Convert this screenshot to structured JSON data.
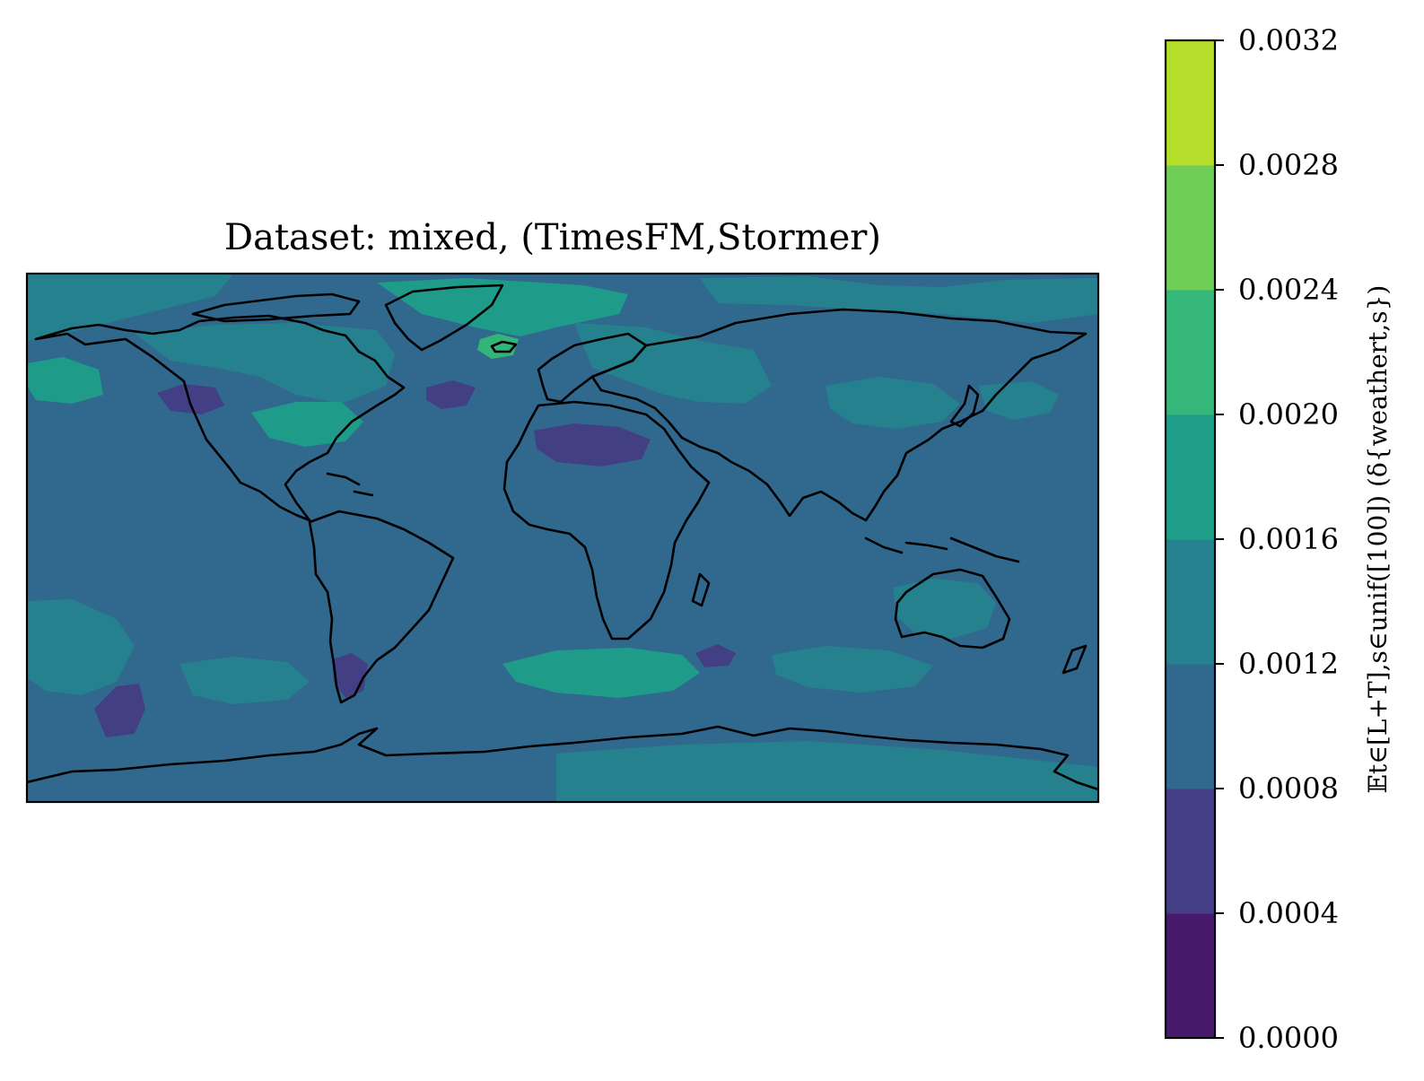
{
  "chart_data": {
    "type": "heatmap",
    "title": "Dataset: mixed, (TimesFM,Stormer)",
    "projection": "equirectangular",
    "grid": false,
    "colorbar": {
      "label": "𝔼t∈[L+T],s∈unif([100]) (δ{weathert,s})",
      "placement": "right",
      "levels": [
        0.0,
        0.0004,
        0.0008,
        0.0012,
        0.0016,
        0.002,
        0.0024,
        0.0028,
        0.0032
      ],
      "tick_labels": [
        "0.0000",
        "0.0004",
        "0.0008",
        "0.0012",
        "0.0016",
        "0.0020",
        "0.0024",
        "0.0028",
        "0.0032"
      ],
      "colors": [
        "#481a6c",
        "#433e85",
        "#31688e",
        "#26828e",
        "#1f9e89",
        "#35b779",
        "#6ece58",
        "#b5de2b",
        "#dde318"
      ]
    },
    "background_level": 0.001,
    "regions": [
      {
        "name": "north-pacific-arctic",
        "value": 0.0014
      },
      {
        "name": "alaska-bering",
        "value": 0.0018
      },
      {
        "name": "canada-north",
        "value": 0.0014
      },
      {
        "name": "central-us",
        "value": 0.0018
      },
      {
        "name": "greenland-iceland",
        "value": 0.0018
      },
      {
        "name": "iceland-spot",
        "value": 0.0022
      },
      {
        "name": "siberia",
        "value": 0.0014
      },
      {
        "name": "russia-west",
        "value": 0.0014
      },
      {
        "name": "central-asia",
        "value": 0.0014
      },
      {
        "name": "east-asia",
        "value": 0.0014
      },
      {
        "name": "australia",
        "value": 0.0014
      },
      {
        "name": "southern-ocean-west",
        "value": 0.0014
      },
      {
        "name": "south-pacific",
        "value": 0.0014
      },
      {
        "name": "south-atlantic",
        "value": 0.0018
      },
      {
        "name": "south-indian",
        "value": 0.0014
      },
      {
        "name": "antarctica-east",
        "value": 0.0014
      },
      {
        "name": "sahara",
        "value": 0.0006
      },
      {
        "name": "western-us",
        "value": 0.0006
      },
      {
        "name": "north-atlantic-low",
        "value": 0.0006
      },
      {
        "name": "patagonia",
        "value": 0.0006
      },
      {
        "name": "south-pacific-low",
        "value": 0.0006
      },
      {
        "name": "indian-ocean-low",
        "value": 0.0006
      }
    ]
  }
}
